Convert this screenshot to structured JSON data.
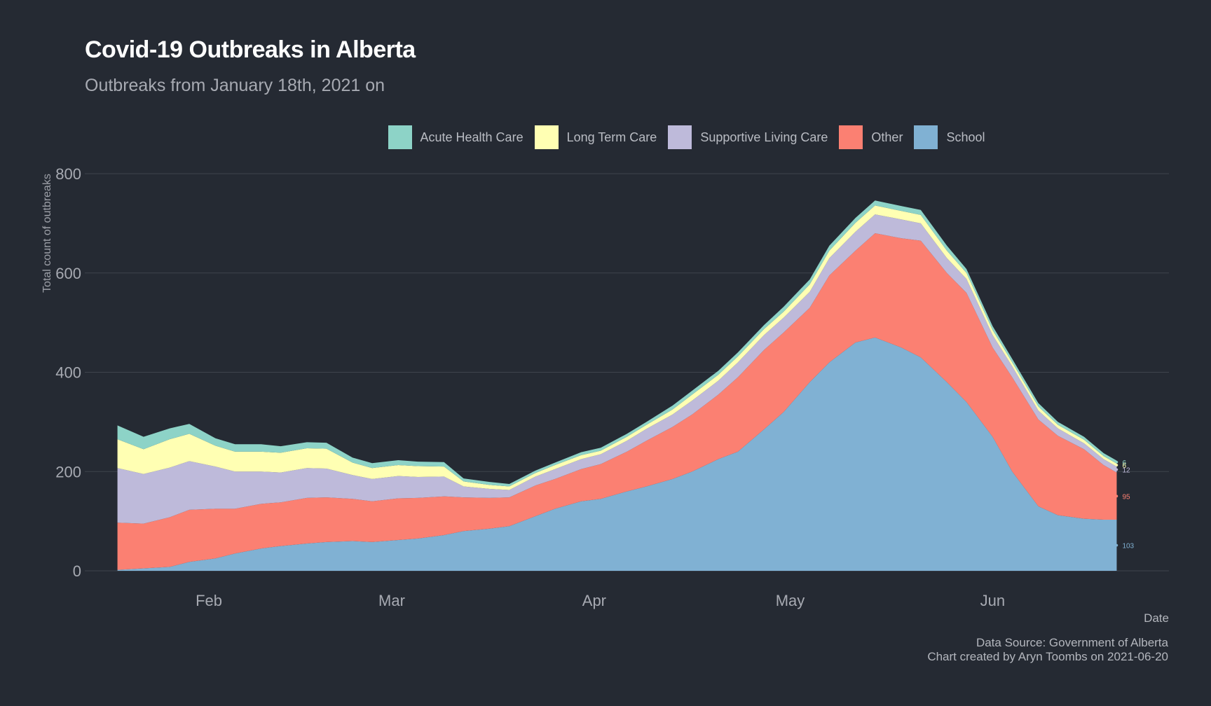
{
  "colors": {
    "background": "#252a33",
    "grid": "#3f444d",
    "Acute Health Care": "#8dd3c7",
    "Long Term Care": "#ffffb3",
    "Supportive Living Care": "#bebada",
    "Other": "#fb8072",
    "School": "#80b1d3"
  },
  "chart_data": {
    "type": "area",
    "stacked": true,
    "title": "Covid-19 Outbreaks in Alberta",
    "subtitle": "Outbreaks from January 18th, 2021 on",
    "xlabel": "Date",
    "ylabel": "Total count of outbreaks",
    "ylim": [
      0,
      800
    ],
    "yticks": [
      0,
      200,
      400,
      600,
      800
    ],
    "xlim": [
      "2021-01-13",
      "2021-06-28"
    ],
    "xticks": [
      {
        "date": "2021-02-01",
        "label": "Feb"
      },
      {
        "date": "2021-03-01",
        "label": "Mar"
      },
      {
        "date": "2021-04-01",
        "label": "Apr"
      },
      {
        "date": "2021-05-01",
        "label": "May"
      },
      {
        "date": "2021-06-01",
        "label": "Jun"
      }
    ],
    "grid": true,
    "legend_position": "top",
    "stack_order": [
      "School",
      "Other",
      "Supportive Living Care",
      "Long Term Care",
      "Acute Health Care"
    ],
    "x": [
      "2021-01-18",
      "2021-01-22",
      "2021-01-26",
      "2021-01-29",
      "2021-02-02",
      "2021-02-05",
      "2021-02-09",
      "2021-02-12",
      "2021-02-16",
      "2021-02-19",
      "2021-02-23",
      "2021-02-26",
      "2021-03-02",
      "2021-03-05",
      "2021-03-09",
      "2021-03-12",
      "2021-03-16",
      "2021-03-19",
      "2021-03-23",
      "2021-03-26",
      "2021-03-30",
      "2021-04-02",
      "2021-04-06",
      "2021-04-09",
      "2021-04-13",
      "2021-04-16",
      "2021-04-20",
      "2021-04-23",
      "2021-04-27",
      "2021-04-30",
      "2021-05-04",
      "2021-05-07",
      "2021-05-11",
      "2021-05-14",
      "2021-05-18",
      "2021-05-21",
      "2021-05-25",
      "2021-05-28",
      "2021-06-01",
      "2021-06-04",
      "2021-06-08",
      "2021-06-11",
      "2021-06-15",
      "2021-06-18",
      "2021-06-20"
    ],
    "series": [
      {
        "name": "School",
        "values": [
          2,
          5,
          8,
          18,
          25,
          35,
          45,
          50,
          55,
          58,
          60,
          58,
          62,
          65,
          72,
          80,
          85,
          90,
          110,
          125,
          140,
          145,
          160,
          170,
          185,
          200,
          225,
          240,
          285,
          320,
          380,
          420,
          460,
          470,
          450,
          430,
          380,
          340,
          270,
          200,
          130,
          112,
          105,
          103,
          103
        ]
      },
      {
        "name": "Other",
        "values": [
          95,
          90,
          100,
          105,
          100,
          90,
          90,
          88,
          92,
          90,
          85,
          82,
          84,
          82,
          78,
          68,
          62,
          58,
          62,
          60,
          65,
          70,
          80,
          92,
          105,
          115,
          130,
          150,
          160,
          160,
          150,
          175,
          185,
          210,
          220,
          235,
          220,
          220,
          180,
          190,
          175,
          160,
          140,
          110,
          95
        ]
      },
      {
        "name": "Supportive Living Care",
        "values": [
          110,
          100,
          100,
          98,
          85,
          75,
          65,
          60,
          60,
          58,
          48,
          45,
          45,
          42,
          40,
          22,
          18,
          15,
          18,
          20,
          20,
          20,
          22,
          24,
          25,
          28,
          28,
          30,
          30,
          30,
          32,
          35,
          38,
          38,
          38,
          35,
          30,
          28,
          25,
          22,
          18,
          15,
          12,
          12,
          12
        ]
      },
      {
        "name": "Long Term Care",
        "values": [
          58,
          50,
          57,
          55,
          42,
          40,
          40,
          40,
          40,
          40,
          25,
          22,
          22,
          22,
          20,
          10,
          8,
          7,
          7,
          8,
          8,
          7,
          8,
          8,
          10,
          12,
          12,
          12,
          12,
          12,
          15,
          15,
          18,
          18,
          17,
          17,
          15,
          12,
          10,
          8,
          8,
          7,
          7,
          6,
          6
        ]
      },
      {
        "name": "Acute Health Care",
        "values": [
          28,
          25,
          22,
          20,
          15,
          15,
          15,
          13,
          12,
          12,
          10,
          10,
          10,
          9,
          9,
          6,
          6,
          5,
          5,
          5,
          6,
          6,
          6,
          6,
          8,
          8,
          8,
          8,
          8,
          10,
          10,
          10,
          10,
          10,
          10,
          10,
          10,
          8,
          8,
          7,
          7,
          6,
          6,
          6,
          6
        ]
      }
    ],
    "end_labels": [
      {
        "series": "Acute Health Care",
        "label": "6"
      },
      {
        "series": "Long Term Care",
        "label": "6"
      },
      {
        "series": "Supportive Living Care",
        "label": "12"
      },
      {
        "series": "Other",
        "label": "95"
      },
      {
        "series": "School",
        "label": "103"
      }
    ]
  },
  "legend": [
    {
      "label": "Acute Health Care",
      "color": "#8dd3c7"
    },
    {
      "label": "Long Term Care",
      "color": "#ffffb3"
    },
    {
      "label": "Supportive Living Care",
      "color": "#bebada"
    },
    {
      "label": "Other",
      "color": "#fb8072"
    },
    {
      "label": "School",
      "color": "#80b1d3"
    }
  ],
  "caption": {
    "line1": "Data Source: Government of Alberta",
    "line2": "Chart created by Aryn Toombs on 2021-06-20"
  }
}
